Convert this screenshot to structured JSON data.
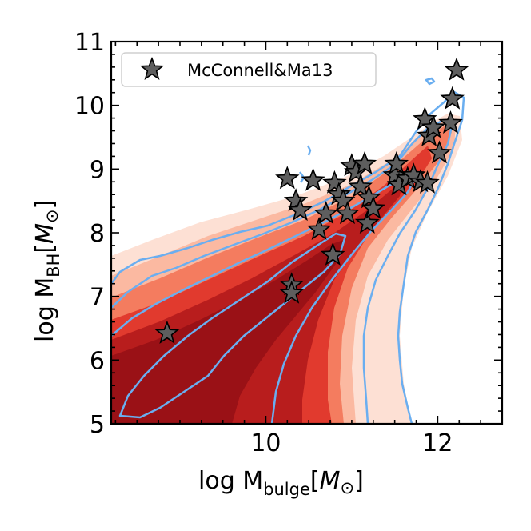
{
  "chart_data": {
    "type": "scatter",
    "title": "",
    "xlabel": {
      "main": "log M",
      "sub": "bulge",
      "unit": "M",
      "unit_symbol": "⊙"
    },
    "ylabel": {
      "main": "log M",
      "sub": "BH",
      "unit": "M",
      "unit_symbol": "⊙"
    },
    "xlim": [
      8.2,
      12.75
    ],
    "ylim": [
      5.0,
      11.0
    ],
    "xticks": [
      10,
      12
    ],
    "yticks": [
      5,
      6,
      7,
      8,
      9,
      10,
      11
    ],
    "xtick_labels": [
      "10",
      "12"
    ],
    "ytick_labels": [
      "5",
      "6",
      "7",
      "8",
      "9",
      "10",
      "11"
    ],
    "legend": {
      "location": "upper-left",
      "entries": [
        "McConnell&Ma13"
      ]
    },
    "colors": {
      "fill_levels": [
        "#fde0d4",
        "#fbb9a1",
        "#f47c5f",
        "#e13a2e",
        "#b81d1d",
        "#9a1116"
      ],
      "contour": "#6aaef0",
      "star_fill": "#5e5e5e",
      "star_edge": "#000000"
    },
    "series": [
      {
        "name": "McConnell&Ma13",
        "marker": "star",
        "points": [
          [
            8.85,
            6.42
          ],
          [
            10.3,
            7.18
          ],
          [
            10.3,
            7.05
          ],
          [
            10.78,
            7.65
          ],
          [
            10.62,
            8.05
          ],
          [
            10.25,
            8.85
          ],
          [
            10.35,
            8.5
          ],
          [
            10.4,
            8.35
          ],
          [
            10.55,
            8.82
          ],
          [
            10.7,
            8.3
          ],
          [
            10.8,
            8.78
          ],
          [
            10.85,
            8.6
          ],
          [
            10.9,
            8.5
          ],
          [
            10.95,
            8.3
          ],
          [
            11.0,
            9.05
          ],
          [
            11.05,
            8.95
          ],
          [
            11.1,
            8.72
          ],
          [
            11.15,
            9.08
          ],
          [
            11.18,
            8.15
          ],
          [
            11.2,
            8.55
          ],
          [
            11.25,
            8.38
          ],
          [
            11.5,
            8.9
          ],
          [
            11.55,
            8.75
          ],
          [
            11.52,
            9.08
          ],
          [
            11.65,
            8.85
          ],
          [
            11.72,
            8.9
          ],
          [
            11.8,
            8.8
          ],
          [
            11.85,
            9.78
          ],
          [
            11.88,
            8.78
          ],
          [
            11.9,
            9.52
          ],
          [
            11.95,
            9.65
          ],
          [
            12.02,
            9.25
          ],
          [
            12.15,
            9.72
          ],
          [
            12.17,
            10.1
          ],
          [
            12.22,
            10.55
          ]
        ]
      }
    ]
  }
}
